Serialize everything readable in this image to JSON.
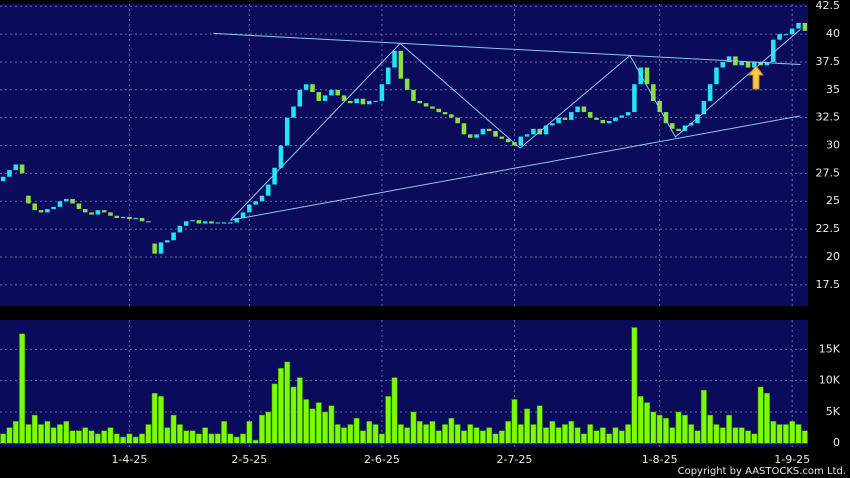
{
  "chart_data": {
    "type": "candlestick",
    "copyright": "Copyright by AASTOCKS.com Ltd.",
    "categories": [
      null,
      null,
      null,
      null,
      null,
      null,
      null,
      null,
      null,
      null,
      null,
      null,
      null,
      null,
      null,
      null,
      null,
      null,
      null,
      null,
      "1-4-25",
      null,
      null,
      null,
      null,
      null,
      null,
      null,
      null,
      null,
      null,
      null,
      null,
      null,
      null,
      null,
      null,
      null,
      null,
      "2-5-25",
      null,
      null,
      null,
      null,
      null,
      null,
      null,
      null,
      null,
      null,
      null,
      null,
      null,
      null,
      null,
      null,
      null,
      null,
      null,
      null,
      "2-6-25",
      null,
      null,
      null,
      null,
      null,
      null,
      null,
      null,
      null,
      null,
      null,
      null,
      null,
      null,
      null,
      null,
      null,
      null,
      null,
      null,
      "2-7-25",
      null,
      null,
      null,
      null,
      null,
      null,
      null,
      null,
      null,
      null,
      null,
      null,
      null,
      null,
      null,
      null,
      null,
      null,
      null,
      null,
      null,
      null,
      "1-8-25",
      null,
      null,
      null,
      null,
      null,
      null,
      null,
      null,
      null,
      null,
      null,
      null,
      null,
      null,
      null,
      null,
      null,
      null,
      null,
      null,
      "1-9-25",
      null,
      null
    ],
    "open": [
      26.8,
      27.2,
      27.8,
      28.3,
      25.5,
      24.8,
      24.2,
      24.0,
      24.3,
      24.5,
      25.0,
      25.2,
      24.8,
      24.3,
      24.0,
      23.8,
      24.2,
      24.0,
      23.7,
      23.5,
      23.6,
      23.4,
      23.5,
      23.2,
      21.2,
      20.3,
      21.3,
      21.5,
      22.2,
      22.8,
      23.2,
      23.3,
      23.0,
      23.2,
      23.0,
      23.1,
      23.0,
      23.1,
      23.5,
      24.0,
      24.7,
      25.0,
      25.5,
      26.5,
      28.0,
      30.0,
      32.5,
      33.5,
      35.0,
      35.5,
      34.8,
      34.0,
      34.5,
      35.0,
      34.5,
      34.0,
      33.8,
      34.2,
      33.7,
      34.0,
      34.0,
      35.5,
      37.0,
      38.5,
      36.0,
      35.0,
      34.0,
      33.8,
      33.5,
      33.3,
      33.0,
      32.8,
      32.5,
      32.0,
      31.0,
      30.7,
      31.0,
      31.5,
      31.3,
      30.8,
      30.6,
      30.3,
      30.0,
      30.8,
      31.0,
      31.5,
      31.0,
      31.8,
      32.0,
      32.5,
      32.3,
      33.0,
      33.5,
      33.0,
      32.5,
      32.3,
      32.0,
      32.2,
      32.5,
      32.7,
      33.0,
      35.5,
      37.0,
      35.5,
      34.0,
      33.0,
      32.0,
      31.5,
      31.3,
      31.8,
      32.0,
      32.8,
      34.0,
      35.5,
      37.0,
      37.5,
      38.0,
      37.2,
      37.5,
      37.0,
      37.5,
      37.2,
      37.5,
      39.5,
      40.0,
      40.0,
      40.5,
      41.0
    ],
    "close": [
      27.2,
      27.8,
      28.3,
      27.5,
      24.8,
      24.2,
      24.0,
      24.3,
      24.5,
      25.0,
      25.2,
      24.8,
      24.3,
      24.0,
      23.8,
      24.2,
      24.0,
      23.7,
      23.5,
      23.6,
      23.4,
      23.5,
      23.2,
      23.1,
      20.3,
      21.3,
      21.5,
      22.2,
      22.8,
      23.2,
      23.3,
      23.0,
      23.2,
      23.0,
      23.1,
      23.0,
      23.1,
      23.5,
      24.0,
      24.7,
      25.0,
      25.5,
      26.5,
      28.0,
      30.0,
      32.5,
      33.5,
      35.0,
      35.5,
      34.8,
      34.0,
      34.5,
      35.0,
      34.5,
      34.0,
      33.8,
      34.2,
      33.7,
      34.0,
      34.0,
      35.5,
      37.0,
      38.5,
      36.0,
      35.0,
      34.0,
      33.8,
      33.5,
      33.3,
      33.0,
      32.8,
      32.5,
      32.0,
      31.0,
      30.7,
      31.0,
      31.5,
      31.3,
      30.8,
      30.6,
      30.3,
      30.0,
      30.8,
      31.0,
      31.5,
      31.0,
      31.8,
      32.0,
      32.5,
      32.3,
      33.0,
      33.5,
      33.0,
      32.5,
      32.3,
      32.0,
      32.2,
      32.5,
      32.7,
      33.0,
      35.5,
      37.0,
      35.5,
      34.0,
      33.0,
      32.0,
      31.5,
      31.3,
      31.8,
      32.0,
      32.8,
      34.0,
      35.5,
      37.0,
      37.5,
      38.0,
      37.2,
      37.5,
      37.0,
      37.5,
      37.2,
      37.5,
      39.5,
      40.0,
      40.0,
      40.5,
      41.0,
      40.3
    ],
    "volume": [
      1500,
      2500,
      3500,
      17500,
      3000,
      4500,
      3000,
      3500,
      2500,
      3000,
      3500,
      2000,
      2000,
      2500,
      2000,
      1500,
      2000,
      2500,
      1500,
      1000,
      1500,
      1000,
      1500,
      3000,
      8000,
      7500,
      2500,
      4500,
      3000,
      2000,
      2000,
      1500,
      2500,
      1500,
      1500,
      3500,
      1500,
      1000,
      1500,
      3500,
      500,
      4500,
      5000,
      9500,
      12000,
      13000,
      9000,
      10500,
      7000,
      5500,
      6500,
      5000,
      6000,
      3000,
      2500,
      3000,
      4000,
      2000,
      3500,
      3000,
      1500,
      7500,
      10500,
      3000,
      2500,
      5000,
      3500,
      3000,
      3500,
      2000,
      3000,
      4000,
      3000,
      2000,
      3000,
      2500,
      2000,
      2500,
      1500,
      2000,
      3500,
      7000,
      3000,
      5500,
      3000,
      6000,
      2500,
      3500,
      2500,
      3000,
      3500,
      2500,
      1500,
      3000,
      2000,
      2500,
      1500,
      2500,
      2000,
      3000,
      18500,
      7500,
      6500,
      5000,
      4500,
      4000,
      2500,
      5000,
      4500,
      3000,
      2000,
      8500,
      4500,
      3000,
      2500,
      4500,
      2500,
      2500,
      2000,
      1500,
      9000,
      8000,
      3500,
      3000,
      3000,
      3500,
      3000,
      2000
    ],
    "up_color": "#22e4f2",
    "down_color": "#8ce03a",
    "volume_color": "#7cfc00",
    "line_color": "#8cc8f0",
    "ylim": [
      15.6,
      42.7
    ],
    "yticks": [
      17.5,
      20,
      22.5,
      25,
      27.5,
      30,
      32.5,
      35,
      37.5,
      40,
      42.5
    ],
    "volume_ylim": [
      -600,
      19700
    ],
    "volume_yticks": [
      0,
      {
        "value": 5000,
        "label": "5K"
      },
      {
        "value": 10000,
        "label": "10K"
      },
      {
        "value": 15000,
        "label": "15K"
      }
    ],
    "grid": true,
    "trendlines": [
      {
        "x": [
          33.3,
          126.3
        ],
        "y": [
          40.06,
          37.27
        ]
      },
      {
        "x": [
          36,
          126.3
        ],
        "y": [
          23.3,
          32.66
        ]
      },
      {
        "x": [
          36,
          62.9,
          81.9,
          99.3,
          106.5,
          126.3
        ],
        "y": [
          23.3,
          39.16,
          29.77,
          38.08,
          30.77,
          40.42
        ]
      }
    ]
  }
}
